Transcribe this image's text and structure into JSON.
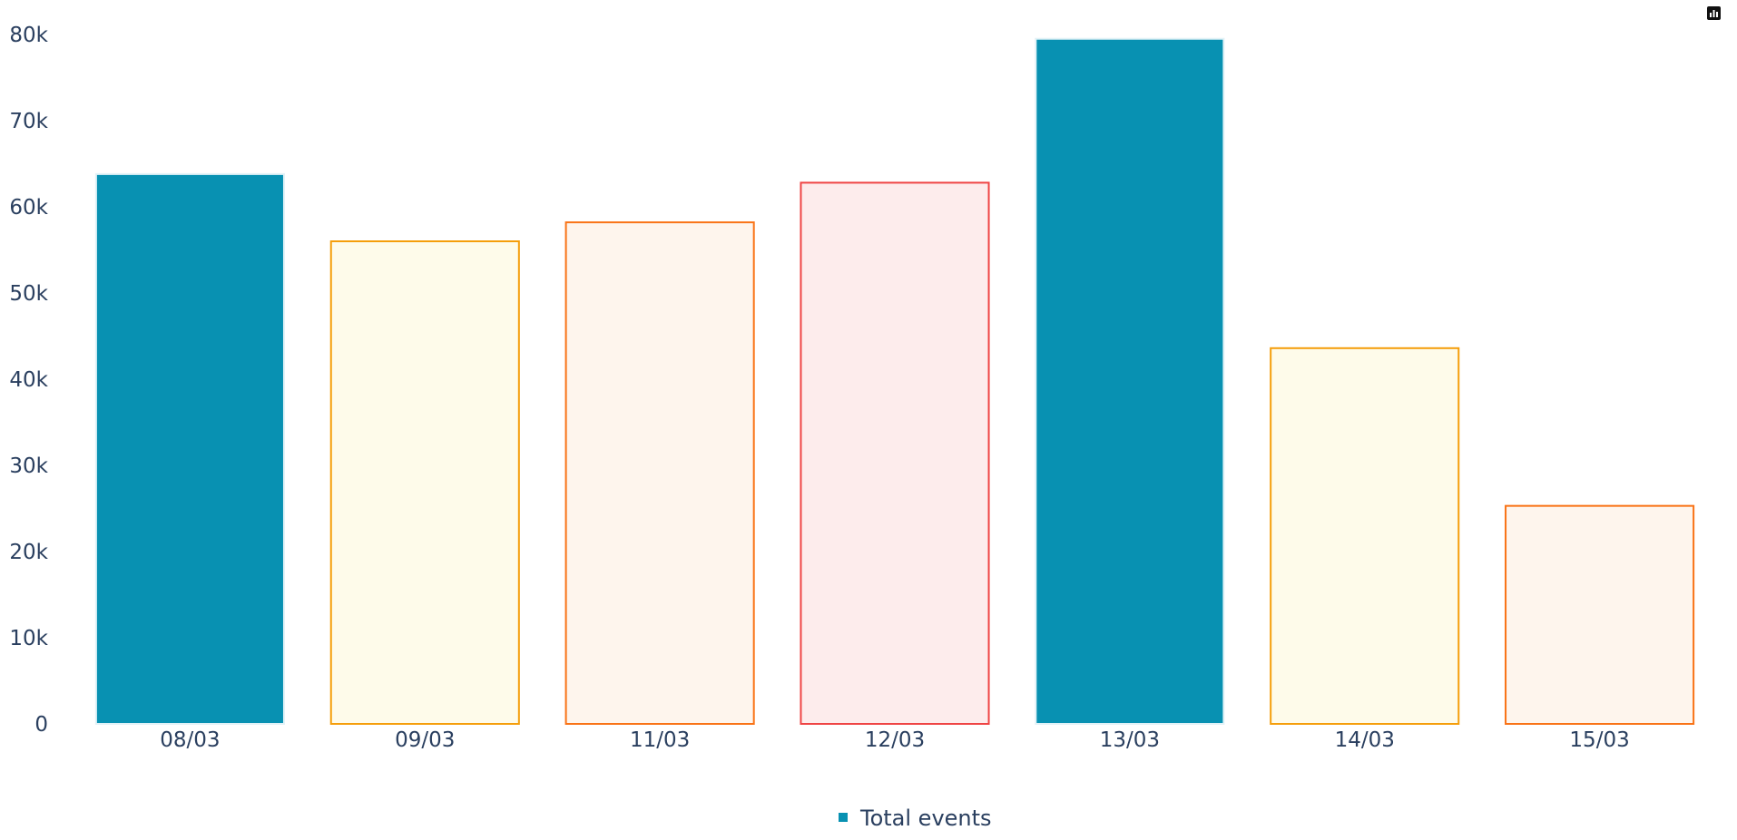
{
  "chart_data": {
    "type": "bar",
    "categories": [
      "08/03",
      "09/03",
      "11/03",
      "12/03",
      "13/03",
      "14/03",
      "15/03"
    ],
    "values": [
      63800,
      56000,
      58200,
      62800,
      79500,
      43600,
      25300
    ],
    "bar_styles": [
      {
        "fill": "#0891b2",
        "stroke": "#e2f2f7"
      },
      {
        "fill": "#fefbea",
        "stroke": "#f59e0b"
      },
      {
        "fill": "#fef5ed",
        "stroke": "#f97316"
      },
      {
        "fill": "#fdecec",
        "stroke": "#ef4444"
      },
      {
        "fill": "#0891b2",
        "stroke": "#e2f2f7"
      },
      {
        "fill": "#fefbea",
        "stroke": "#f59e0b"
      },
      {
        "fill": "#fef5ed",
        "stroke": "#f97316"
      }
    ],
    "ylim": [
      0,
      80000
    ],
    "y_ticks": [
      0,
      10000,
      20000,
      30000,
      40000,
      50000,
      60000,
      70000,
      80000
    ],
    "y_tick_labels": [
      "0",
      "10k",
      "20k",
      "30k",
      "40k",
      "50k",
      "60k",
      "70k",
      "80k"
    ],
    "grid": false,
    "legend": {
      "position": "bottom-center",
      "entries": [
        {
          "name": "Total events",
          "color": "#0891b2"
        }
      ]
    }
  },
  "modebar": {
    "icon": "bar-chart-icon"
  }
}
